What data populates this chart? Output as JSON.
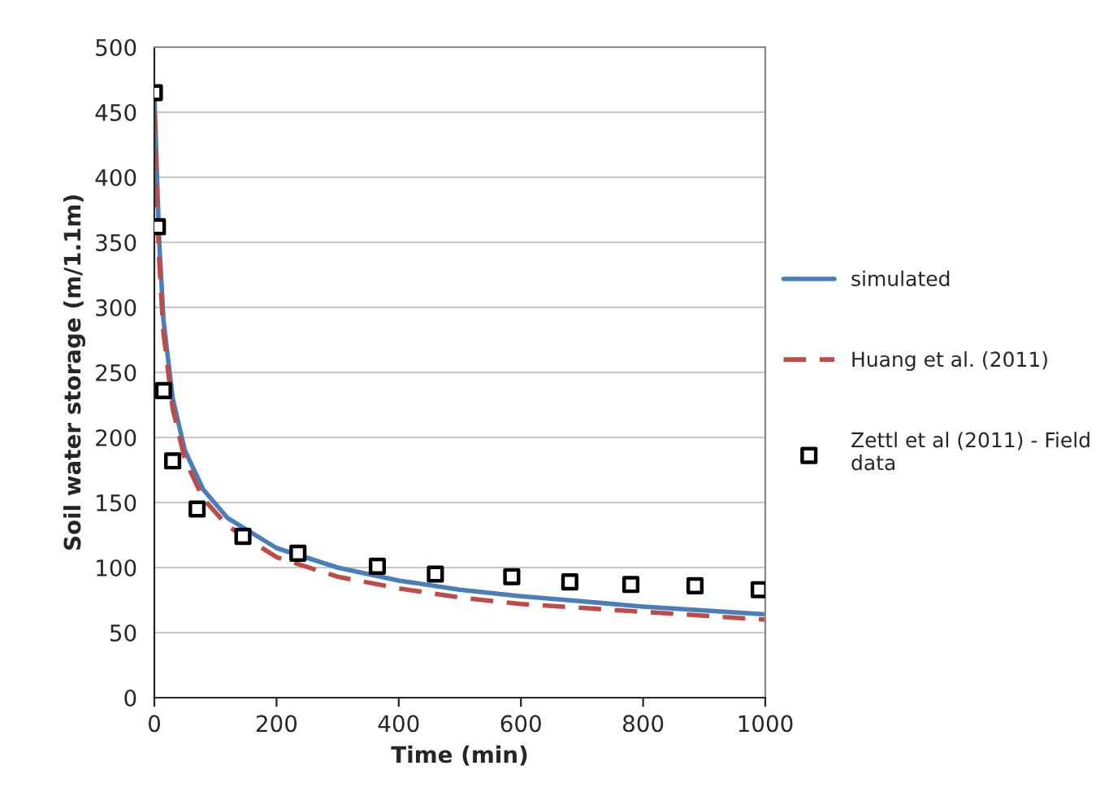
{
  "chart_data": {
    "type": "line",
    "xlabel": "Time (min)",
    "ylabel": "Soil water storage (m/1.1m)",
    "xlim": [
      0,
      1000
    ],
    "xticks": [
      0,
      200,
      400,
      600,
      800,
      1000
    ],
    "ylim": [
      0,
      500
    ],
    "yticks": [
      0,
      50,
      100,
      150,
      200,
      250,
      300,
      350,
      400,
      450,
      500
    ],
    "grid": "y",
    "legend": "right",
    "series": [
      {
        "name": "simulated",
        "line_style": "solid",
        "color": "#4a7ebb",
        "x": [
          0,
          3,
          8,
          15,
          30,
          50,
          80,
          120,
          200,
          300,
          400,
          500,
          600,
          700,
          800,
          900,
          1000
        ],
        "values": [
          465,
          420,
          350,
          290,
          230,
          190,
          160,
          138,
          115,
          100,
          90,
          83,
          78,
          74,
          70,
          67,
          64
        ]
      },
      {
        "name": "Huang et al. (2011)",
        "line_style": "dashed",
        "color": "#be4b48",
        "x": [
          0,
          3,
          8,
          15,
          30,
          50,
          80,
          120,
          200,
          300,
          400,
          500,
          600,
          700,
          800,
          900,
          1000
        ],
        "values": [
          450,
          400,
          335,
          280,
          222,
          183,
          153,
          132,
          108,
          93,
          84,
          77,
          72,
          69,
          66,
          63,
          60
        ]
      },
      {
        "name": "Zettl et al (2011) - Field\ndata",
        "type": "scatter",
        "marker": "square",
        "color": "#000000",
        "x": [
          0,
          5,
          15,
          30,
          70,
          145,
          235,
          365,
          460,
          585,
          680,
          780,
          885,
          990
        ],
        "values": [
          465,
          362,
          236,
          182,
          145,
          124,
          111,
          101,
          95,
          93,
          89,
          87,
          86,
          83
        ]
      }
    ]
  }
}
